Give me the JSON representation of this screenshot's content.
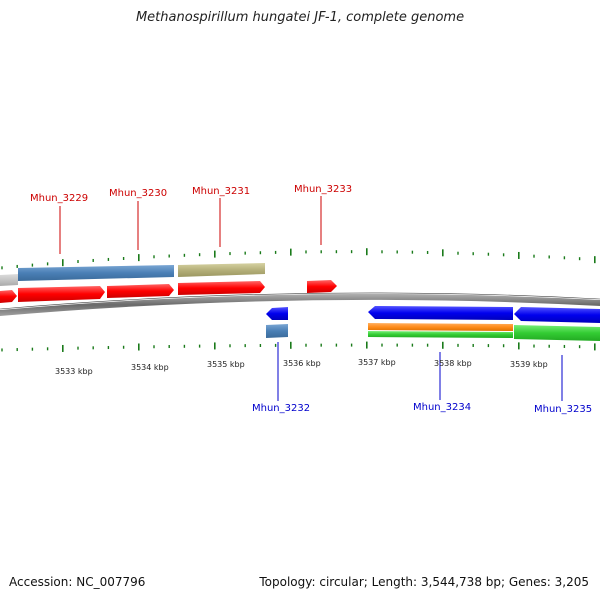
{
  "title": "Methanospirillum hungatei JF-1, complete genome",
  "footer": {
    "accession": "Accession: NC_007796",
    "summary": "Topology: circular; Length: 3,544,738 bp; Genes: 3,205"
  },
  "colors": {
    "backbone": "#808080",
    "forward_cds": "#ff1a1a",
    "reverse_cds": "#1a1aff",
    "steelblue_feature": "#4a7fb5",
    "olive_feature": "#b5b07a",
    "orange_feature": "#ff8c1a",
    "green_feature": "#33cc33",
    "ticks": "#1a7a1a",
    "label_forward": "#cc0000",
    "label_reverse": "#0000cc"
  },
  "scale_labels": [
    "3533 kbp",
    "3534 kbp",
    "3535 kbp",
    "3536 kbp",
    "3537 kbp",
    "3538 kbp",
    "3539 kbp"
  ],
  "gene_labels_top": [
    "Mhun_3229",
    "Mhun_3230",
    "Mhun_3231",
    "Mhun_3233"
  ],
  "gene_labels_bottom": [
    "Mhun_3232",
    "Mhun_3234",
    "Mhun_3235"
  ]
}
